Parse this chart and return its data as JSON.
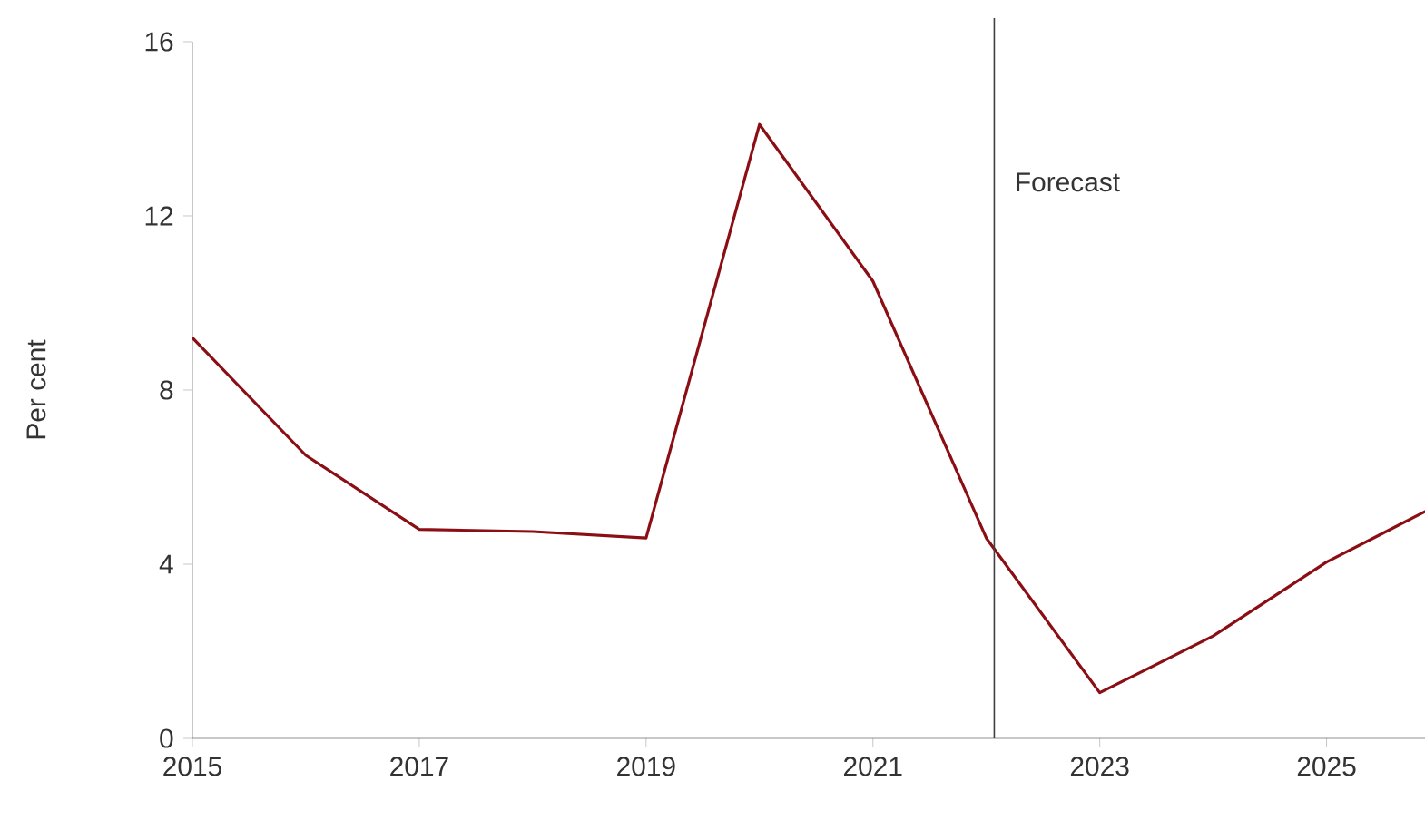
{
  "chart_data": {
    "type": "line",
    "ylabel": "Per cent",
    "x": [
      2015,
      2016,
      2017,
      2018,
      2019,
      2020,
      2021,
      2022,
      2023,
      2024,
      2025,
      2025.9
    ],
    "series": [
      {
        "color": "#8b0e14",
        "values": [
          9.2,
          6.5,
          4.8,
          4.75,
          4.6,
          14.1,
          10.5,
          4.6,
          1.05,
          2.35,
          4.05,
          5.25
        ]
      }
    ],
    "xlim": [
      2015,
      2025.9
    ],
    "xticks": [
      2015,
      2017,
      2019,
      2021,
      2023,
      2025
    ],
    "ylim": [
      0,
      16
    ],
    "yticks": [
      0,
      4,
      8,
      12,
      16
    ],
    "ref_lines": [
      {
        "axis": "x",
        "value": 2022.07,
        "label": "Forecast",
        "color": "#404040"
      }
    ],
    "grid": false,
    "marker": "none",
    "line_style": "solid"
  }
}
